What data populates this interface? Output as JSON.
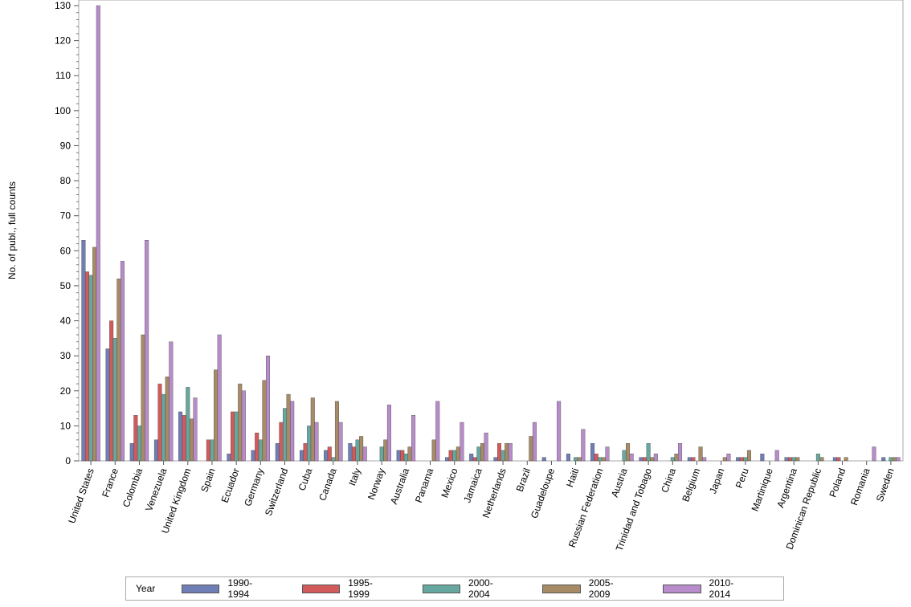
{
  "chart_data": {
    "type": "bar",
    "title": "",
    "xlabel": "",
    "ylabel": "No. of publ., full counts",
    "ylim": [
      0,
      130
    ],
    "yticks": [
      0,
      10,
      20,
      30,
      40,
      50,
      60,
      70,
      80,
      90,
      100,
      110,
      120,
      130
    ],
    "legend_title": "Year",
    "legend_position": "bottom",
    "categories": [
      "United States",
      "France",
      "Colombia",
      "Venezuela",
      "United Kingdom",
      "Spain",
      "Ecuador",
      "Germany",
      "Switzerland",
      "Cuba",
      "Canada",
      "Italy",
      "Norway",
      "Australia",
      "Panama",
      "Mexico",
      "Jamaica",
      "Netherlands",
      "Brazil",
      "Guadeloupe",
      "Haiti",
      "Russian Federation",
      "Austria",
      "Trinidad and Tobago",
      "China",
      "Belgium",
      "Japan",
      "Peru",
      "Martinique",
      "Argentina",
      "Dominican Republic",
      "Poland",
      "Romania",
      "Sweden"
    ],
    "series": [
      {
        "name": "1990-1994",
        "color": "#6f7eb4",
        "values": [
          63,
          32,
          5,
          6,
          14,
          0,
          2,
          3,
          5,
          3,
          3,
          5,
          0,
          3,
          0,
          1,
          2,
          1,
          0,
          1,
          2,
          5,
          0,
          1,
          0,
          1,
          0,
          1,
          2,
          1,
          0,
          1,
          0,
          1
        ]
      },
      {
        "name": "1995-1999",
        "color": "#d35a5a",
        "values": [
          54,
          40,
          13,
          22,
          13,
          6,
          14,
          8,
          11,
          5,
          4,
          4,
          0,
          3,
          0,
          3,
          1,
          5,
          0,
          0,
          0,
          2,
          0,
          1,
          0,
          1,
          0,
          1,
          0,
          1,
          0,
          1,
          0,
          0
        ]
      },
      {
        "name": "2000-2004",
        "color": "#66a8a0",
        "values": [
          53,
          35,
          10,
          19,
          21,
          6,
          14,
          6,
          15,
          10,
          1,
          6,
          4,
          2,
          0,
          3,
          4,
          3,
          0,
          0,
          1,
          1,
          3,
          5,
          1,
          0,
          0,
          1,
          0,
          1,
          2,
          0,
          0,
          1
        ]
      },
      {
        "name": "2005-2009",
        "color": "#a68b64",
        "values": [
          61,
          52,
          36,
          24,
          12,
          26,
          22,
          23,
          19,
          18,
          17,
          7,
          6,
          4,
          6,
          4,
          5,
          5,
          7,
          0,
          1,
          1,
          5,
          1,
          2,
          4,
          1,
          3,
          0,
          1,
          1,
          1,
          0,
          1
        ]
      },
      {
        "name": "2010-2014",
        "color": "#b88ccb",
        "values": [
          130,
          57,
          63,
          34,
          18,
          36,
          20,
          30,
          17,
          11,
          11,
          4,
          16,
          13,
          17,
          11,
          8,
          5,
          11,
          17,
          9,
          4,
          2,
          2,
          5,
          1,
          2,
          0,
          3,
          0,
          0,
          0,
          4,
          1
        ]
      }
    ]
  }
}
